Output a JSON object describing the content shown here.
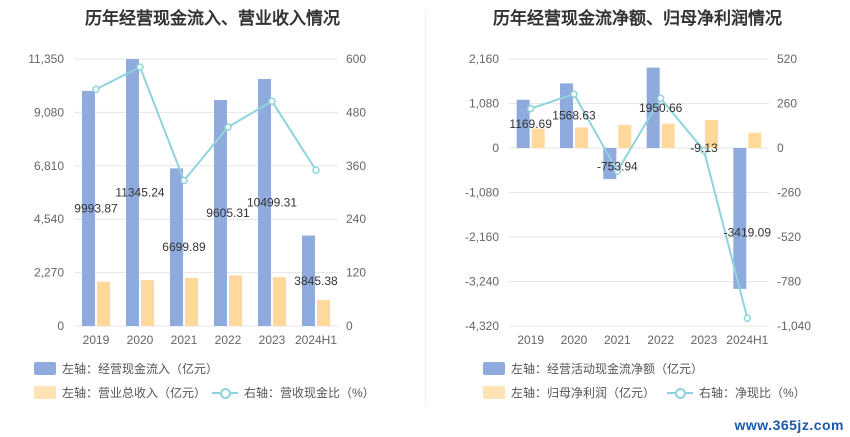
{
  "chart_data": [
    {
      "type": "bar",
      "title": "历年经营现金流入、营业收入情况",
      "categories": [
        "2019",
        "2020",
        "2021",
        "2022",
        "2023",
        "2024H1"
      ],
      "series": [
        {
          "name": "左轴：经营现金流入（亿元）",
          "axis": "left",
          "kind": "bar",
          "color": "#8faadc",
          "values": [
            9993.87,
            11345.24,
            6699.89,
            9605.31,
            10499.31,
            3845.38
          ],
          "labels": [
            "9993.87",
            "11345.24",
            "6699.89",
            "9605.31",
            "10499.31",
            "3845.38"
          ]
        },
        {
          "name": "左轴：营业总收入（亿元）",
          "axis": "left",
          "kind": "bar",
          "color": "#ffd99b",
          "values": [
            1880,
            1950,
            2050,
            2150,
            2080,
            1100
          ]
        },
        {
          "name": "右轴：营收现金比（%）",
          "axis": "right",
          "kind": "line",
          "color": "#8fd3de",
          "values": [
            532,
            582,
            327,
            447,
            505,
            350
          ]
        }
      ],
      "y_left": {
        "range": [
          0,
          11350
        ],
        "ticks": [
          "0",
          "2,270",
          "4,540",
          "6,810",
          "9,080",
          "11,350"
        ]
      },
      "y_right": {
        "range": [
          0,
          600
        ],
        "ticks": [
          "0",
          "120",
          "240",
          "360",
          "480",
          "600"
        ]
      },
      "legend": [
        {
          "label": "左轴：经营现金流入（亿元）",
          "type": "bar",
          "color": "#8faadc"
        },
        {
          "label": "左轴：营业总收入（亿元）",
          "type": "bar",
          "color": "#ffe3b5"
        },
        {
          "label": "右轴：营收现金比（%）",
          "type": "line",
          "color": "#8fd3de"
        }
      ],
      "grid": true,
      "legend_position": "bottom"
    },
    {
      "type": "bar",
      "title": "历年经营现金流净额、归母净利润情况",
      "categories": [
        "2019",
        "2020",
        "2021",
        "2022",
        "2023",
        "2024H1"
      ],
      "series": [
        {
          "name": "左轴：经营活动现金流净额（亿元）",
          "axis": "left",
          "kind": "bar",
          "color": "#8faadc",
          "values": [
            1169.69,
            1568.63,
            -753.94,
            1950.66,
            -9.13,
            -3419.09
          ],
          "labels": [
            "1169.69",
            "1568.63",
            "-753.94",
            "1950.66",
            "-9.13",
            "-3419.09"
          ]
        },
        {
          "name": "左轴：归母净利润（亿元）",
          "axis": "left",
          "kind": "bar",
          "color": "#ffd99b",
          "values": [
            470,
            500,
            560,
            590,
            680,
            370
          ]
        },
        {
          "name": "右轴：净现比（%）",
          "axis": "right",
          "kind": "line",
          "color": "#8fd3de",
          "values": [
            230,
            315,
            -135,
            290,
            -15,
            -995
          ]
        }
      ],
      "y_left": {
        "range": [
          -4320,
          2160
        ],
        "ticks": [
          "-4,320",
          "-3,240",
          "-2,160",
          "-1,080",
          "0",
          "1,080",
          "2,160"
        ]
      },
      "y_right": {
        "range": [
          -1040,
          520
        ],
        "ticks": [
          "-1,040",
          "-780",
          "-520",
          "-260",
          "0",
          "260",
          "520"
        ]
      },
      "legend": [
        {
          "label": "左轴：经营活动现金流净额（亿元）",
          "type": "bar",
          "color": "#8faadc"
        },
        {
          "label": "左轴：归母净利润（亿元）",
          "type": "bar",
          "color": "#ffe3b5"
        },
        {
          "label": "右轴：净现比（%）",
          "type": "line",
          "color": "#8fd3de"
        }
      ],
      "grid": true,
      "legend_position": "bottom"
    }
  ],
  "watermark": "www.365jz.com"
}
